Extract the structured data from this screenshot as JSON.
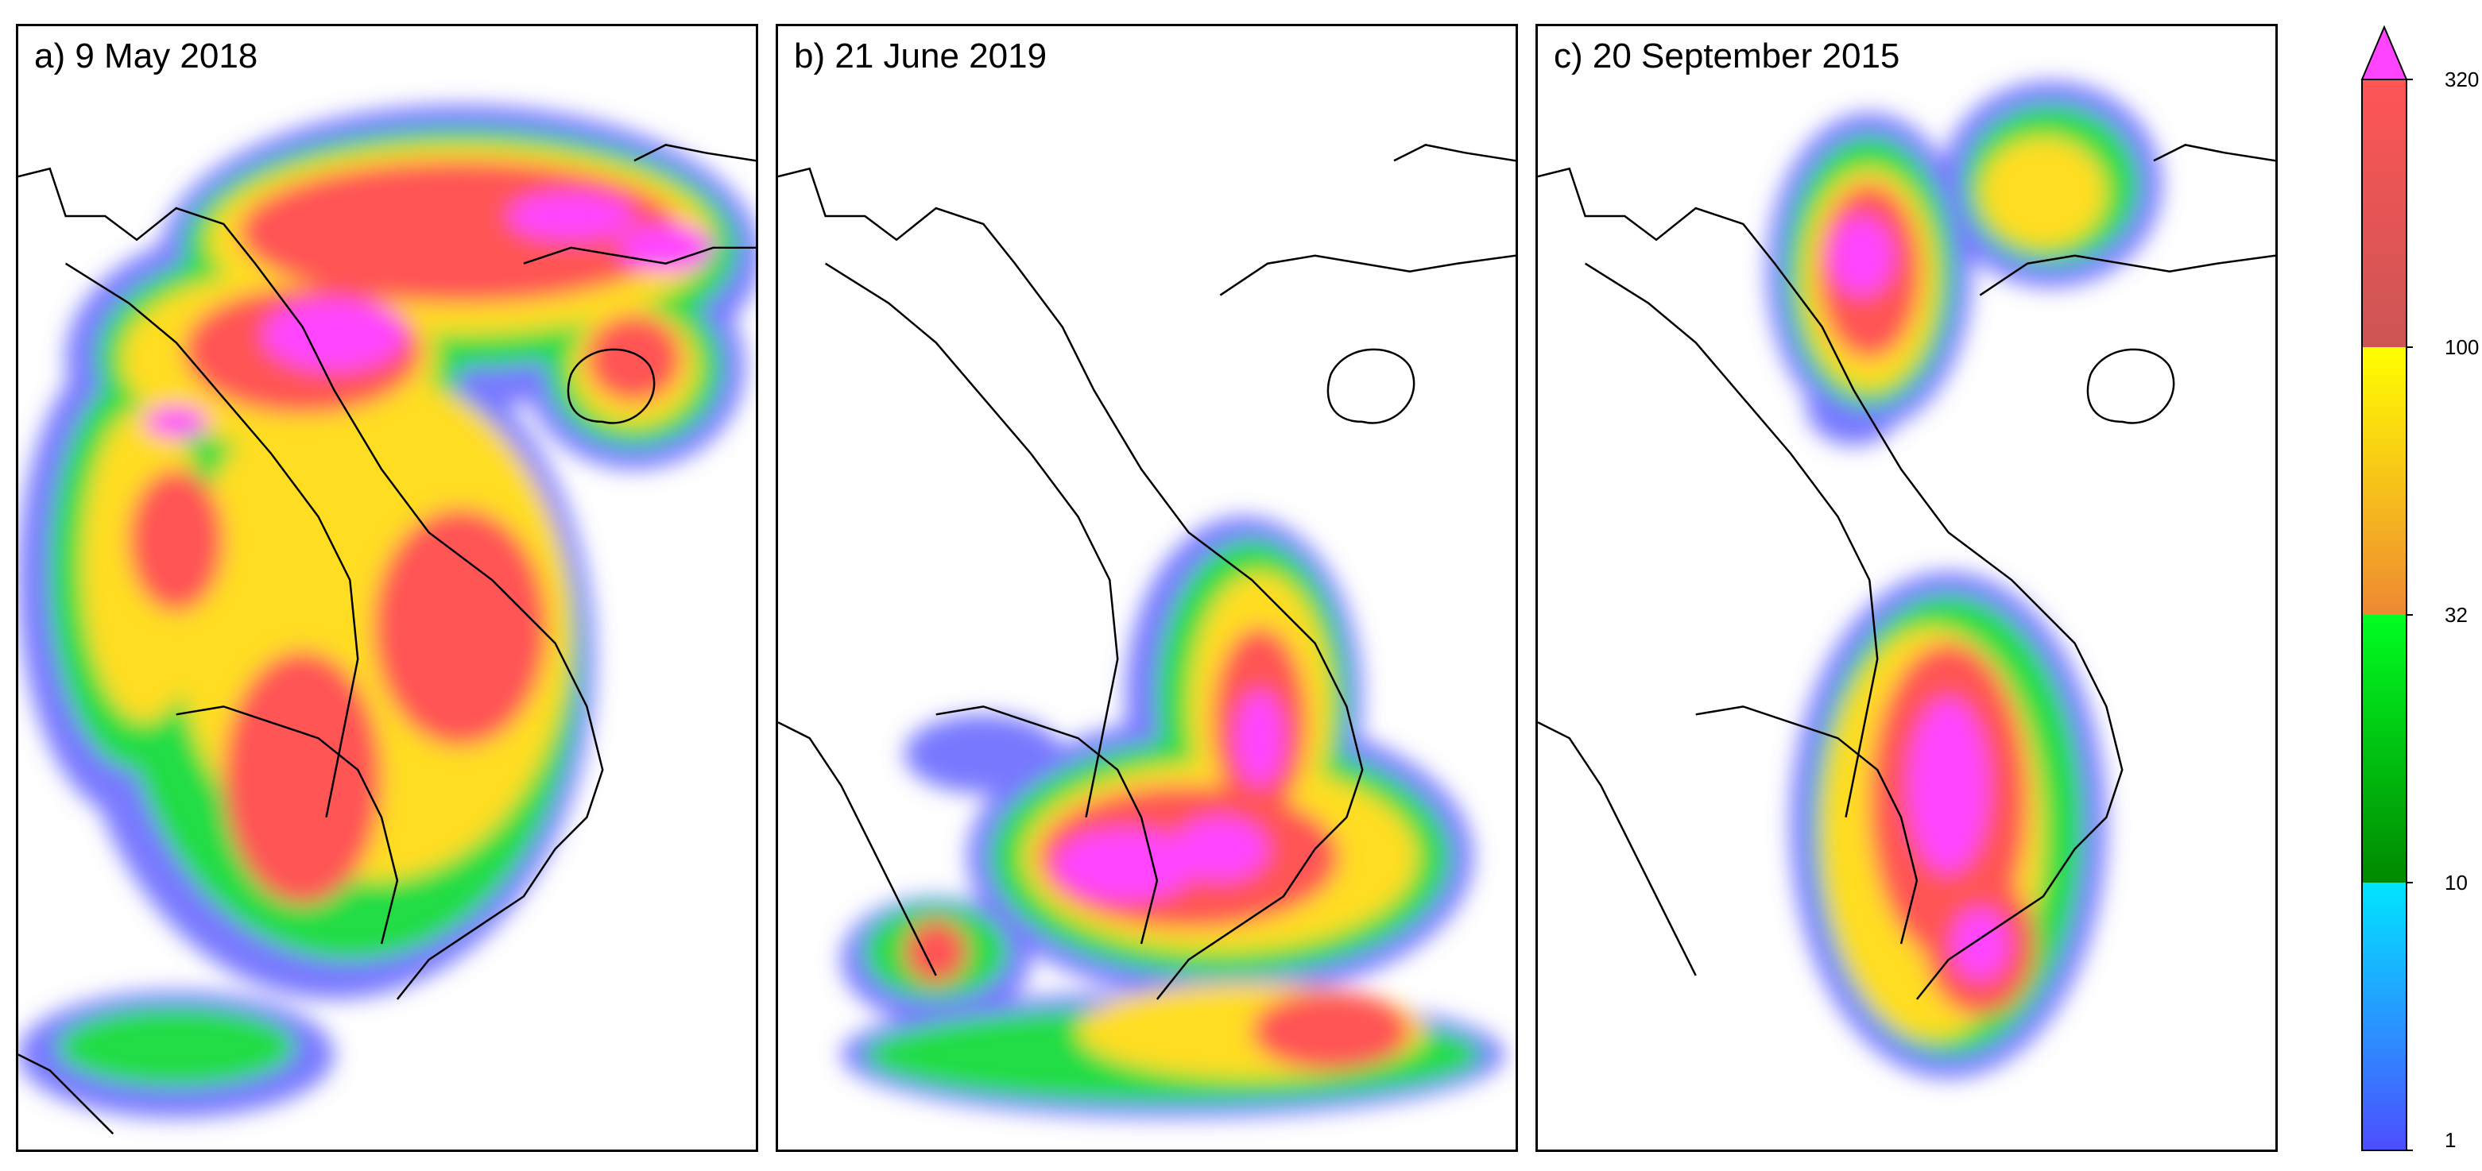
{
  "panels": [
    {
      "id": "a",
      "title": "a) 9 May 2018"
    },
    {
      "id": "b",
      "title": "b) 21 June 2019"
    },
    {
      "id": "c",
      "title": "c) 20 September 2015"
    }
  ],
  "colorbar": {
    "extend": "max",
    "extend_color": "#ff44ff",
    "ticks": [
      "320",
      "100",
      "32",
      "10",
      "1"
    ],
    "segments": [
      {
        "from": "1",
        "to": "10",
        "colors": [
          "#4d4dff",
          "#00e5ff"
        ]
      },
      {
        "from": "10",
        "to": "32",
        "colors": [
          "#008800",
          "#00ff22"
        ]
      },
      {
        "from": "32",
        "to": "100",
        "colors": [
          "#ee8833",
          "#ffff00"
        ]
      },
      {
        "from": "100",
        "to": "320",
        "colors": [
          "#cc5555",
          "#ff5555"
        ]
      }
    ]
  }
}
